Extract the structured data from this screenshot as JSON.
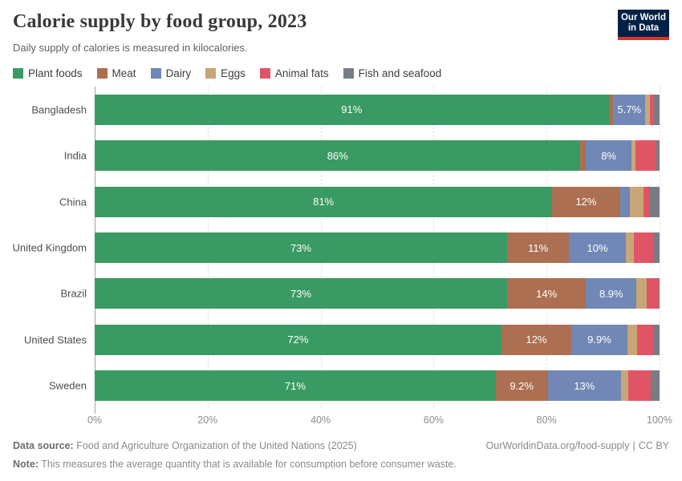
{
  "header": {
    "title": "Calorie supply by food group, 2023",
    "subtitle": "Daily supply of calories is measured in kilocalories.",
    "logo": {
      "line1": "Our World",
      "line2": "in Data"
    }
  },
  "legend": [
    {
      "label": "Plant foods",
      "color": "#3a9a63"
    },
    {
      "label": "Meat",
      "color": "#ad6f52"
    },
    {
      "label": "Dairy",
      "color": "#7187b5"
    },
    {
      "label": "Eggs",
      "color": "#c9a677"
    },
    {
      "label": "Animal fats",
      "color": "#df5566"
    },
    {
      "label": "Fish and seafood",
      "color": "#787c85"
    }
  ],
  "chart_data": {
    "type": "bar",
    "orientation": "horizontal",
    "stacked": true,
    "title": "Calorie supply by food group, 2023",
    "subtitle": "Daily supply of calories is measured in kilocalories.",
    "unit": "%",
    "xlim": [
      0,
      100
    ],
    "x_ticks": [
      "0%",
      "20%",
      "40%",
      "60%",
      "80%",
      "100%"
    ],
    "x_tick_values": [
      0,
      20,
      40,
      60,
      80,
      100
    ],
    "grid": "dashed-vertical",
    "legend_position": "top",
    "series_names": [
      "Plant foods",
      "Meat",
      "Dairy",
      "Eggs",
      "Animal fats",
      "Fish and seafood"
    ],
    "colors": [
      "#3a9a63",
      "#ad6f52",
      "#7187b5",
      "#c9a677",
      "#df5566",
      "#787c85"
    ],
    "categories": [
      "Bangladesh",
      "India",
      "China",
      "United Kingdom",
      "Brazil",
      "United States",
      "Sweden"
    ],
    "rows": [
      {
        "country": "Bangladesh",
        "values": [
          91,
          0.8,
          5.7,
          0.8,
          0.5,
          1.2
        ],
        "labels": [
          "91%",
          null,
          "5.7%",
          null,
          null,
          null
        ]
      },
      {
        "country": "India",
        "values": [
          86,
          1.0,
          8.0,
          0.8,
          3.7,
          0.5
        ],
        "labels": [
          "86%",
          null,
          "8%",
          null,
          null,
          null
        ]
      },
      {
        "country": "China",
        "values": [
          81,
          12,
          1.8,
          2.3,
          1.1,
          1.8
        ],
        "labels": [
          "81%",
          "12%",
          null,
          null,
          null,
          null
        ]
      },
      {
        "country": "United Kingdom",
        "values": [
          73,
          11,
          10,
          1.4,
          3.4,
          1.2
        ],
        "labels": [
          "73%",
          "11%",
          "10%",
          null,
          null,
          null
        ]
      },
      {
        "country": "Brazil",
        "values": [
          73,
          14,
          8.9,
          1.8,
          2.1,
          0.2
        ],
        "labels": [
          "73%",
          "14%",
          "8.9%",
          null,
          null,
          null
        ]
      },
      {
        "country": "United States",
        "values": [
          72,
          12.4,
          9.9,
          1.7,
          2.9,
          1.1
        ],
        "labels": [
          "72%",
          "12%",
          "9.9%",
          null,
          null,
          null
        ]
      },
      {
        "country": "Sweden",
        "values": [
          71,
          9.2,
          13,
          1.3,
          4.0,
          1.5
        ],
        "labels": [
          "71%",
          "9.2%",
          "13%",
          null,
          null,
          null
        ]
      }
    ]
  },
  "footer": {
    "source_label": "Data source:",
    "source_text": "Food and Agriculture Organization of the United Nations (2025)",
    "link": "OurWorldinData.org/food-supply",
    "separator": "|",
    "license": "CC BY",
    "note_label": "Note:",
    "note_text": "This measures the average quantity that is available for consumption before consumer waste."
  }
}
